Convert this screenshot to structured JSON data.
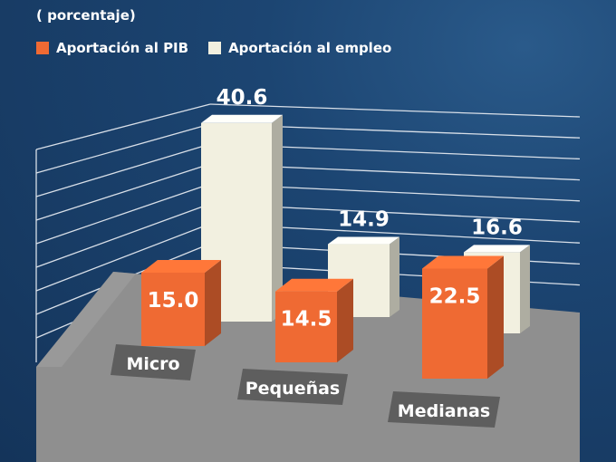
{
  "subtitle": "( porcentaje)",
  "legend": [
    {
      "label": "Aportación al PIB",
      "color": "#ef6a33"
    },
    {
      "label": "Aportación al empleo",
      "color": "#f2f0e0"
    }
  ],
  "chart_data": {
    "type": "bar",
    "categories": [
      "Micro",
      "Pequeñas",
      "Medianas"
    ],
    "series": [
      {
        "name": "Aportación al PIB",
        "values": [
          15.0,
          14.5,
          22.5
        ]
      },
      {
        "name": "Aportación al empleo",
        "values": [
          40.6,
          14.9,
          16.6
        ]
      }
    ],
    "value_labels": {
      "Aportación al PIB": [
        "15.0",
        "14.5",
        "22.5"
      ],
      "Aportación al empleo": [
        "40.6",
        "14.9",
        "16.6"
      ]
    },
    "ylabel": "porcentaje",
    "grid": true,
    "legend_position": "top-left"
  }
}
